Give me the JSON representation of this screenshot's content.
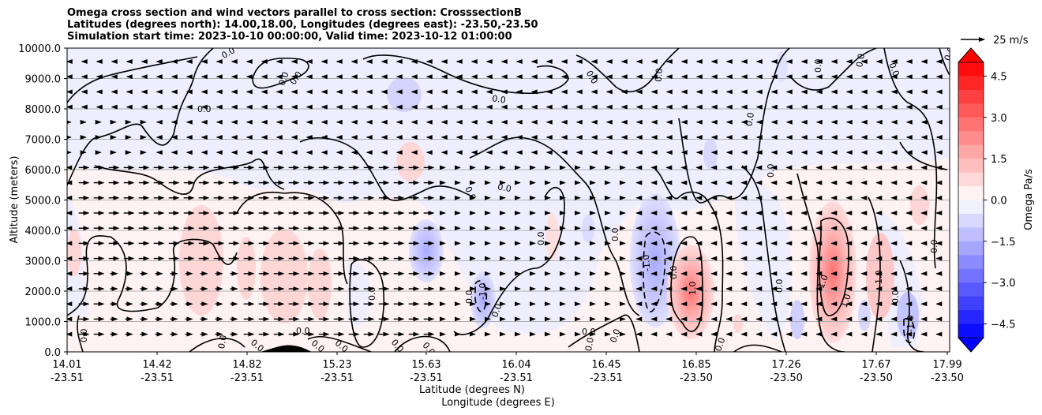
{
  "chart_data": {
    "type": "heatmap",
    "title_lines": [
      "Omega cross section and wind vectors parallel to cross section: CrosssectionB",
      "Latitudes (degrees north): 14.00,18.00, Longitudes (degrees east): -23.50,-23.50",
      "Simulation start time: 2023-10-10 00:00:00, Valid time: 2023-10-12 01:00:00"
    ],
    "ylabel": "Altitude (meters)",
    "xlabel_lat": "Latitude (degrees N)",
    "xlabel_lon": "Longitude (degrees E)",
    "ylim": [
      0,
      10000
    ],
    "yticks": [
      "0.0",
      "1000.0",
      "2000.0",
      "3000.0",
      "4000.0",
      "5000.0",
      "6000.0",
      "7000.0",
      "8000.0",
      "9000.0",
      "10000.0"
    ],
    "xticks_lat": [
      "14.01",
      "14.42",
      "14.82",
      "15.23",
      "15.63",
      "16.04",
      "16.45",
      "16.85",
      "17.26",
      "17.67",
      "17.99"
    ],
    "xticks_lon": [
      "-23.51",
      "-23.51",
      "-23.51",
      "-23.51",
      "-23.51",
      "-23.51",
      "-23.51",
      "-23.50",
      "-23.50",
      "-23.50",
      "-23.50"
    ],
    "grid": "horizontal",
    "colorbar": {
      "label": "Omega Pa/s",
      "ticks": [
        "4.5",
        "3.0",
        "1.5",
        "0.0",
        "−1.5",
        "−3.0",
        "−4.5"
      ],
      "range": [
        -5,
        5
      ],
      "extend": "both"
    },
    "vector_key": "25 m/s",
    "contour_labels": [
      "0.0",
      "1.0",
      "-1.0"
    ]
  },
  "colors": {
    "positive": "#ff0000",
    "negative": "#0000ff",
    "neutral": "#ffffff"
  }
}
